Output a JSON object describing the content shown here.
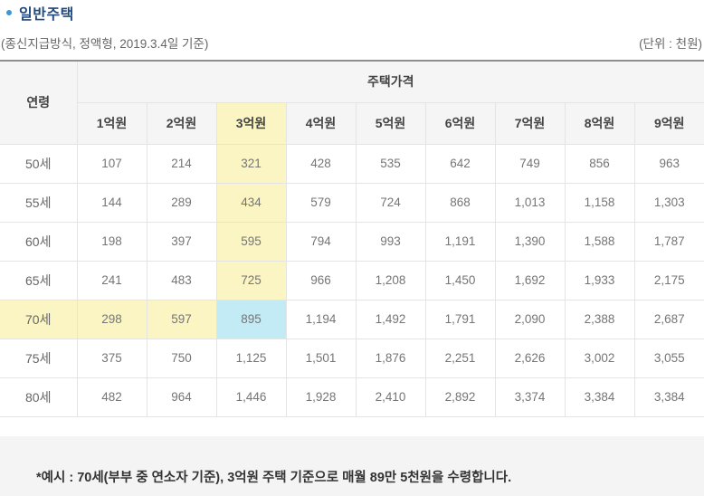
{
  "page": {
    "title": "일반주택",
    "conditions": "(종신지급방식, 정액형, 2019.3.4일 기준)",
    "unit_label": "(단위 : 천원)",
    "example_note": "*예시 : 70세(부부 중 연소자 기준), 3억원 주택 기준으로 매월 89만 5천원을 수령합니다."
  },
  "table": {
    "corner_header": "연령",
    "group_header": "주택가격",
    "price_headers": [
      "1억원",
      "2억원",
      "3억원",
      "4억원",
      "5억원",
      "6억원",
      "7억원",
      "8억원",
      "9억원"
    ],
    "rows": [
      {
        "age": "50세",
        "values": [
          "107",
          "214",
          "321",
          "428",
          "535",
          "642",
          "749",
          "856",
          "963"
        ]
      },
      {
        "age": "55세",
        "values": [
          "144",
          "289",
          "434",
          "579",
          "724",
          "868",
          "1,013",
          "1,158",
          "1,303"
        ]
      },
      {
        "age": "60세",
        "values": [
          "198",
          "397",
          "595",
          "794",
          "993",
          "1,191",
          "1,390",
          "1,588",
          "1,787"
        ]
      },
      {
        "age": "65세",
        "values": [
          "241",
          "483",
          "725",
          "966",
          "1,208",
          "1,450",
          "1,692",
          "1,933",
          "2,175"
        ]
      },
      {
        "age": "70세",
        "values": [
          "298",
          "597",
          "895",
          "1,194",
          "1,492",
          "1,791",
          "2,090",
          "2,388",
          "2,687"
        ]
      },
      {
        "age": "75세",
        "values": [
          "375",
          "750",
          "1,125",
          "1,501",
          "1,876",
          "2,251",
          "2,626",
          "3,002",
          "3,055"
        ]
      },
      {
        "age": "80세",
        "values": [
          "482",
          "964",
          "1,446",
          "1,928",
          "2,410",
          "2,892",
          "3,374",
          "3,384",
          "3,384"
        ]
      }
    ],
    "highlights": {
      "yellow_header_col": 2,
      "yellow_column": {
        "col": 2,
        "row_start": 0,
        "row_end": 3
      },
      "yellow_row": {
        "row": 4,
        "col_start": 0,
        "col_end": 1,
        "include_age_cell": true
      },
      "blue_cell": {
        "row": 4,
        "col": 2
      }
    }
  },
  "colors": {
    "title_navy": "#21497f",
    "bullet_blue": "#3d97d3",
    "meta_gray": "#666666",
    "table_top_border": "#8f8f8f",
    "cell_border": "#e4e4e4",
    "header_bg": "#f5f5f5",
    "highlight_yellow": "#fbf5c3",
    "highlight_blue": "#c2ebf6",
    "data_text": "#757575",
    "note_bg": "#f4f4f4",
    "note_text": "#333333"
  }
}
